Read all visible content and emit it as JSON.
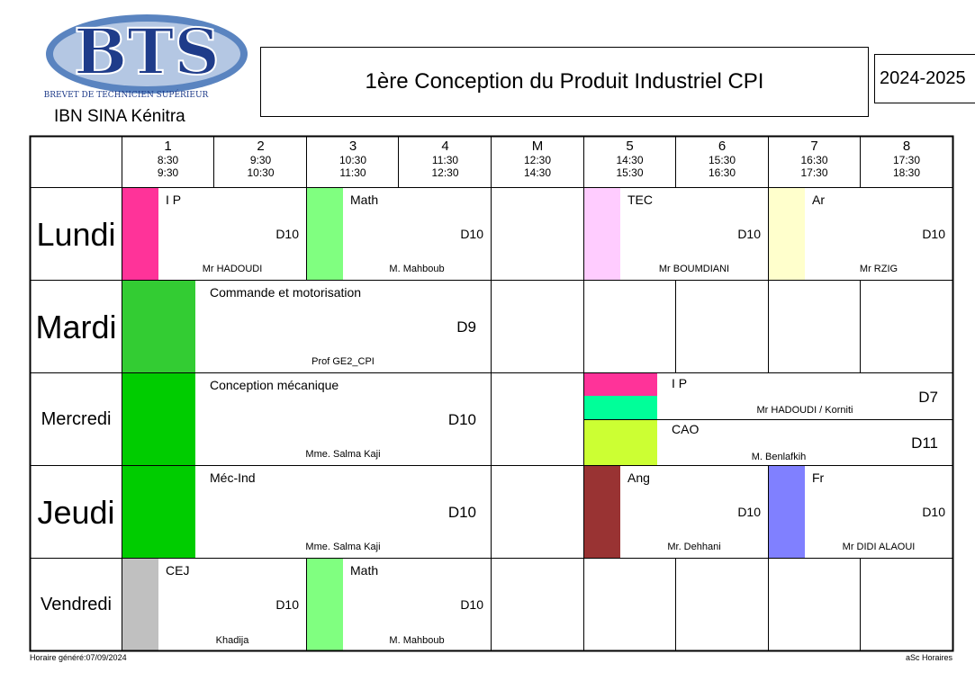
{
  "header": {
    "logo_text": "BTS",
    "logo_subtitle": "BREVET DE TECHNICIEN SUPÉRIEUR",
    "school": "IBN SINA Kénitra",
    "title": "1ère Conception du Produit Industriel CPI",
    "year": "2024-2025"
  },
  "periods": [
    {
      "num": "1",
      "start": "8:30",
      "end": "9:30"
    },
    {
      "num": "2",
      "start": "9:30",
      "end": "10:30"
    },
    {
      "num": "3",
      "start": "10:30",
      "end": "11:30"
    },
    {
      "num": "4",
      "start": "11:30",
      "end": "12:30"
    },
    {
      "num": "M",
      "start": "12:30",
      "end": "14:30"
    },
    {
      "num": "5",
      "start": "14:30",
      "end": "15:30"
    },
    {
      "num": "6",
      "start": "15:30",
      "end": "16:30"
    },
    {
      "num": "7",
      "start": "16:30",
      "end": "17:30"
    },
    {
      "num": "8",
      "start": "17:30",
      "end": "18:30"
    }
  ],
  "days": [
    "Lundi",
    "Mardi",
    "Mercredi",
    "Jeudi",
    "Vendredi"
  ],
  "sessions": {
    "lundi_ip": {
      "subject": "I P",
      "room": "D10",
      "teacher": "Mr HADOUDI",
      "color": "#ff3399"
    },
    "lundi_math": {
      "subject": "Math",
      "room": "D10",
      "teacher": "M. Mahboub",
      "color": "#80ff80"
    },
    "lundi_tec": {
      "subject": "TEC",
      "room": "D10",
      "teacher": "Mr BOUMDIANI",
      "color": "#ffccff"
    },
    "lundi_ar": {
      "subject": "Ar",
      "room": "D10",
      "teacher": "Mr RZIG",
      "color": "#ffffcc"
    },
    "mardi_cmd": {
      "subject": "Commande et motorisation",
      "room": "D9",
      "teacher": "Prof GE2_CPI",
      "color": "#33cc33"
    },
    "mercredi_conc": {
      "subject": "Conception mécanique",
      "room": "D10",
      "teacher": "Mme. Salma Kaji",
      "color": "#00cc00"
    },
    "mercredi_ip": {
      "subject": "I P",
      "room": "D7",
      "teacher": "Mr HADOUDI / Korniti",
      "color": "#ff3399",
      "color2": "#00ff99"
    },
    "mercredi_cao": {
      "subject": "CAO",
      "room": "D11",
      "teacher": "M. Benlafkih",
      "color": "#ccff33"
    },
    "jeudi_mec": {
      "subject": "Méc-Ind",
      "room": "D10",
      "teacher": "Mme. Salma Kaji",
      "color": "#00cc00"
    },
    "jeudi_ang": {
      "subject": "Ang",
      "room": "D10",
      "teacher": "Mr. Dehhani",
      "color": "#993333"
    },
    "jeudi_fr": {
      "subject": "Fr",
      "room": "D10",
      "teacher": "Mr DIDI ALAOUI",
      "color": "#8080ff"
    },
    "vendredi_cej": {
      "subject": "CEJ",
      "room": "D10",
      "teacher": "Khadija",
      "color": "#c0c0c0"
    },
    "vendredi_math": {
      "subject": "Math",
      "room": "D10",
      "teacher": "M. Mahboub",
      "color": "#80ff80"
    }
  },
  "footer": {
    "generated": "Horaire généré:07/09/2024",
    "software": "aSc Horaires"
  }
}
